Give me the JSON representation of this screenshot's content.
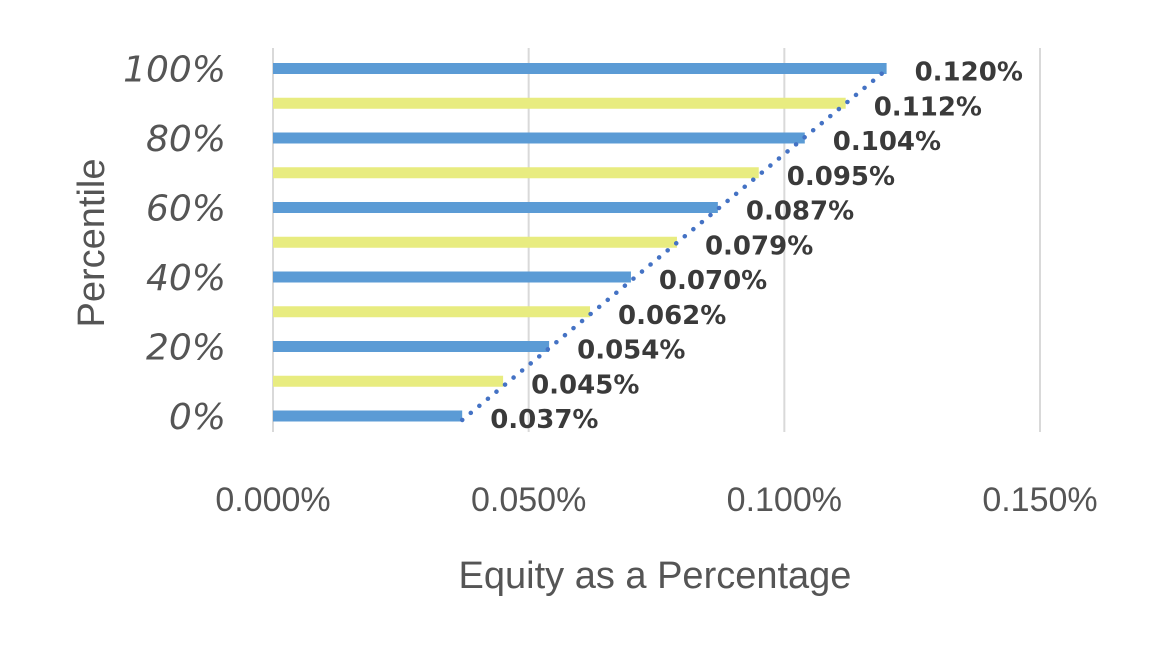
{
  "chart_data": {
    "type": "bar",
    "orientation": "horizontal",
    "xlabel": "Equity as a Percentage",
    "ylabel": "Percentile",
    "xlim": [
      0,
      0.15
    ],
    "x_ticks": [
      "0.000%",
      "0.050%",
      "0.100%",
      "0.150%"
    ],
    "ylim": [
      0,
      100
    ],
    "y_ticks": [
      "0%",
      "20%",
      "40%",
      "60%",
      "80%",
      "100%"
    ],
    "grid": "vertical",
    "legend": "none",
    "categories": [
      0,
      10,
      20,
      30,
      40,
      50,
      60,
      70,
      80,
      90,
      100
    ],
    "values": [
      0.037,
      0.045,
      0.054,
      0.062,
      0.07,
      0.079,
      0.087,
      0.095,
      0.104,
      0.112,
      0.12
    ],
    "data_labels": [
      "0.037%",
      "0.045%",
      "0.054%",
      "0.062%",
      "0.070%",
      "0.079%",
      "0.087%",
      "0.095%",
      "0.104%",
      "0.112%",
      "0.120%"
    ],
    "bar_colors": [
      "#5b9bd5",
      "#e8ec80"
    ],
    "trendline": {
      "type": "linear",
      "style": "dotted",
      "color": "#4472c4"
    }
  }
}
